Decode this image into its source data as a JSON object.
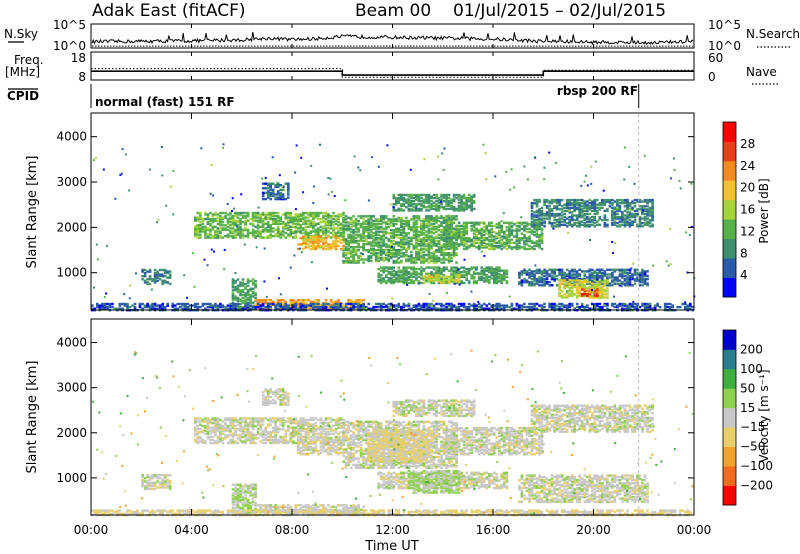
{
  "chart_data": [
    {
      "type": "line",
      "panel": "summary-nsky-nsearch",
      "title": "Adak East (fitACF)",
      "beam": "Beam 00",
      "date_range": "01/Jul/2015 – 02/Jul/2015",
      "left_label": "N.Sky",
      "right_label": "N.Search",
      "left_ticks": [
        "10^5",
        "10^0"
      ],
      "right_ticks": [
        "10^5",
        "10^0"
      ],
      "xlim_hours": [
        0,
        24
      ],
      "series": [
        {
          "name": "N.Sky",
          "style": "solid",
          "x_hours": [
            0,
            2,
            4,
            6,
            7,
            8,
            9,
            10,
            12,
            14,
            16,
            18,
            20,
            22,
            24
          ],
          "log10_values": [
            1.2,
            1.3,
            1.4,
            1.6,
            2.0,
            1.7,
            1.9,
            2.4,
            2.2,
            2.0,
            1.8,
            1.3,
            1.1,
            1.0,
            1.2
          ]
        },
        {
          "name": "N.Search",
          "style": "dotted",
          "x_hours": [
            0,
            6,
            12,
            18,
            24
          ],
          "log10_values": [
            0.2,
            0.2,
            0.2,
            0.2,
            0.2
          ]
        }
      ]
    },
    {
      "type": "line",
      "panel": "summary-freq-nave",
      "left_label_1": "Freq.",
      "left_label_2": "[MHz]",
      "right_label": "Nave",
      "left_ticks": [
        "18",
        "8"
      ],
      "right_ticks": [
        "60",
        "0"
      ],
      "series": [
        {
          "name": "Freq.",
          "style": "solid",
          "x_hours": [
            0,
            10,
            10,
            18,
            18,
            24
          ],
          "values": [
            11.0,
            11.0,
            9.5,
            9.5,
            11.0,
            11.0
          ],
          "ylim": [
            8,
            18
          ]
        },
        {
          "name": "Nave",
          "style": "dotted",
          "x_hours": [
            0,
            10,
            10,
            18,
            18,
            24
          ],
          "values": [
            24,
            24,
            4,
            4,
            20,
            20
          ],
          "ylim": [
            0,
            60
          ]
        }
      ]
    },
    {
      "type": "table",
      "panel": "cpid",
      "label": "CPID",
      "segments": [
        {
          "text": "normal (fast) 151 RF",
          "start_hour": 0,
          "end_hour": 21.8
        },
        {
          "text": "rbsp 200 RF",
          "start_hour": 21.8,
          "end_hour": 24
        }
      ]
    },
    {
      "type": "heatmap",
      "panel": "power",
      "ylabel": "Slant Range [km]",
      "ylim": [
        200,
        4500
      ],
      "yticks": [
        "1000",
        "2000",
        "3000",
        "4000"
      ],
      "colorbar_label": "Power [dB]",
      "colorbar_ticks": [
        "4",
        "8",
        "12",
        "16",
        "20",
        "24",
        "28"
      ],
      "colorbar_range": [
        0,
        32
      ],
      "colors": [
        "#0000ff",
        "#2a5aa8",
        "#3f8f6f",
        "#57b04a",
        "#a6d23a",
        "#f2c12e",
        "#f28a1e",
        "#e8401a",
        "#ff0000"
      ],
      "regions": [
        {
          "h0": 2.0,
          "h1": 3.2,
          "r0": 780,
          "r1": 1100,
          "level": 8
        },
        {
          "h0": 4.1,
          "h1": 10.0,
          "r0": 1800,
          "r1": 2350,
          "level": 13
        },
        {
          "h0": 8.2,
          "h1": 10.0,
          "r0": 1550,
          "r1": 1850,
          "level": 20
        },
        {
          "h0": 6.8,
          "h1": 7.8,
          "r0": 2650,
          "r1": 3000,
          "level": 6
        },
        {
          "h0": 10.0,
          "h1": 14.5,
          "r0": 1250,
          "r1": 2300,
          "level": 12
        },
        {
          "h0": 12.0,
          "h1": 15.2,
          "r0": 2400,
          "r1": 2750,
          "level": 10
        },
        {
          "h0": 11.4,
          "h1": 16.5,
          "r0": 800,
          "r1": 1150,
          "level": 11
        },
        {
          "h0": 13.2,
          "h1": 14.6,
          "r0": 800,
          "r1": 1000,
          "level": 17
        },
        {
          "h0": 14.0,
          "h1": 18.0,
          "r0": 1550,
          "r1": 2150,
          "level": 12
        },
        {
          "h0": 17.5,
          "h1": 22.4,
          "r0": 2050,
          "r1": 2650,
          "level": 8
        },
        {
          "h0": 17.0,
          "h1": 22.2,
          "r0": 750,
          "r1": 1100,
          "level": 6
        },
        {
          "h0": 18.6,
          "h1": 20.6,
          "r0": 480,
          "r1": 880,
          "level": 17
        },
        {
          "h0": 19.5,
          "h1": 20.2,
          "r0": 520,
          "r1": 680,
          "level": 27
        },
        {
          "h0": 5.6,
          "h1": 6.5,
          "r0": 230,
          "r1": 900,
          "level": 10
        },
        {
          "h0": 6.5,
          "h1": 10.8,
          "r0": 250,
          "r1": 450,
          "level": 22
        },
        {
          "h0": 0.0,
          "h1": 24.0,
          "r0": 200,
          "r1": 360,
          "level": 5
        }
      ]
    },
    {
      "type": "heatmap",
      "panel": "velocity",
      "ylabel": "Slant Range [km]",
      "ylim": [
        200,
        4500
      ],
      "yticks": [
        "1000",
        "2000",
        "3000",
        "4000"
      ],
      "xticks": [
        "00:00",
        "04:00",
        "08:00",
        "12:00",
        "16:00",
        "20:00",
        "00:00"
      ],
      "xlabel": "Time UT",
      "colorbar_label": "Velocity [m s⁻¹]",
      "colorbar_ticks": [
        "200",
        "100",
        "50",
        "15",
        "−15",
        "−50",
        "−100",
        "−200"
      ],
      "colorbar_range": [
        -250,
        250
      ],
      "colors": [
        "#ff0000",
        "#f26a1e",
        "#f2a02e",
        "#e8cf6a",
        "#c8c8c8",
        "#8fd050",
        "#3fae3f",
        "#2a7f8f",
        "#0000cc"
      ],
      "regions": [
        {
          "h0": 2.0,
          "h1": 3.2,
          "r0": 780,
          "r1": 1100,
          "level": 0
        },
        {
          "h0": 4.1,
          "h1": 10.0,
          "r0": 1800,
          "r1": 2350,
          "level": 0
        },
        {
          "h0": 8.2,
          "h1": 10.0,
          "r0": 1550,
          "r1": 1850,
          "level": -12
        },
        {
          "h0": 6.8,
          "h1": 7.8,
          "r0": 2650,
          "r1": 3000,
          "level": 0
        },
        {
          "h0": 10.0,
          "h1": 14.5,
          "r0": 1250,
          "r1": 2300,
          "level": 0
        },
        {
          "h0": 11.0,
          "h1": 13.5,
          "r0": 1400,
          "r1": 2100,
          "level": -40
        },
        {
          "h0": 12.0,
          "h1": 15.2,
          "r0": 2400,
          "r1": 2750,
          "level": 0
        },
        {
          "h0": 11.4,
          "h1": 16.5,
          "r0": 800,
          "r1": 1150,
          "level": 0
        },
        {
          "h0": 12.6,
          "h1": 14.6,
          "r0": 700,
          "r1": 1200,
          "level": 40
        },
        {
          "h0": 14.0,
          "h1": 18.0,
          "r0": 1550,
          "r1": 2150,
          "level": 0
        },
        {
          "h0": 17.5,
          "h1": 22.4,
          "r0": 2050,
          "r1": 2650,
          "level": 0
        },
        {
          "h0": 17.0,
          "h1": 22.2,
          "r0": 500,
          "r1": 1100,
          "level": 0
        },
        {
          "h0": 5.6,
          "h1": 6.5,
          "r0": 230,
          "r1": 900,
          "level": 35
        },
        {
          "h0": 6.5,
          "h1": 10.8,
          "r0": 250,
          "r1": 450,
          "level": 0
        },
        {
          "h0": 0.0,
          "h1": 24.0,
          "r0": 200,
          "r1": 330,
          "level": -30
        }
      ]
    }
  ]
}
